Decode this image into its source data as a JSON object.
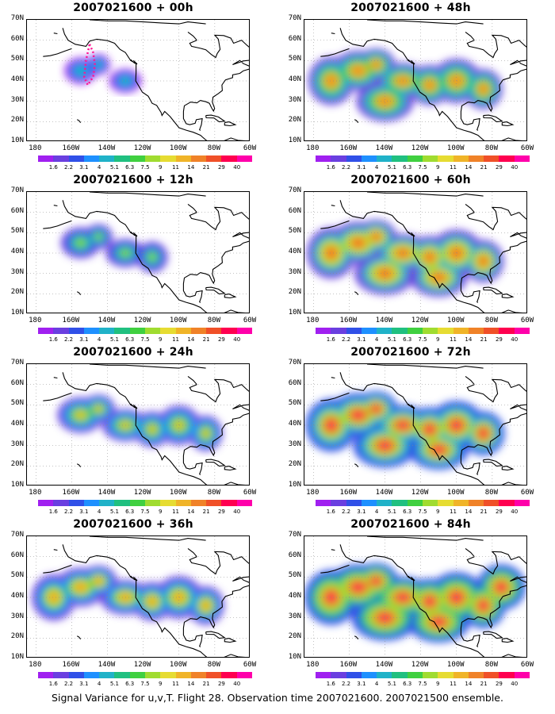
{
  "panels": [
    {
      "title": "2007021600 + 00h",
      "level": 0.15,
      "track": true
    },
    {
      "title": "2007021600 + 12h",
      "level": 0.35,
      "track": false
    },
    {
      "title": "2007021600 + 24h",
      "level": 0.55,
      "track": false
    },
    {
      "title": "2007021600 + 36h",
      "level": 0.68,
      "track": false
    },
    {
      "title": "2007021600 + 48h",
      "level": 0.75,
      "track": false
    },
    {
      "title": "2007021600 + 60h",
      "level": 0.85,
      "track": false
    },
    {
      "title": "2007021600 + 72h",
      "level": 0.92,
      "track": false
    },
    {
      "title": "2007021600 + 84h",
      "level": 1.0,
      "track": false
    }
  ],
  "lat_labels": [
    "70N",
    "60N",
    "50N",
    "40N",
    "30N",
    "20N",
    "10N"
  ],
  "lon_labels": [
    "180",
    "160W",
    "140W",
    "120W",
    "100W",
    "80W",
    "60W"
  ],
  "colorbar": {
    "labels": [
      "1.6",
      "2.2",
      "3.1",
      "4",
      "5.1",
      "6.3",
      "7.5",
      "9",
      "11",
      "14",
      "21",
      "29",
      "40"
    ],
    "colors": [
      "#a020f0",
      "#6a3fe0",
      "#3050e8",
      "#1e90ff",
      "#20b2c8",
      "#20c080",
      "#40d040",
      "#a0dc30",
      "#e6dc32",
      "#f0b428",
      "#f08228",
      "#f05028",
      "#ff0050",
      "#ff00aa"
    ]
  },
  "caption": "Signal Variance for u,v,T. Flight 28. Observation time 2007021600. 2007021500 ensemble."
}
